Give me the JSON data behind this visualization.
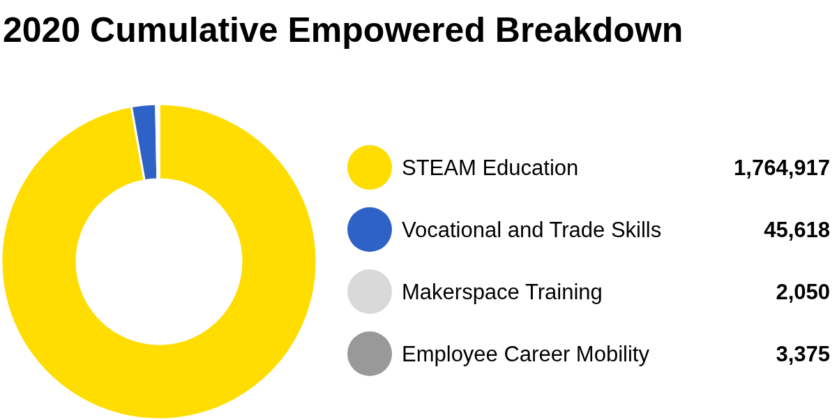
{
  "chart_data": {
    "type": "donut",
    "title": "2020 Cumulative Empowered Breakdown",
    "categories": [
      "STEAM Education",
      "Vocational and Trade Skills",
      "Makerspace Training",
      "Employee Career Mobility"
    ],
    "values": [
      1764917,
      45618,
      2050,
      3375
    ],
    "colors": [
      "#ffdd00",
      "#2e62c6",
      "#d9d9d9",
      "#999999"
    ],
    "value_labels": [
      "1,764,917",
      "45,618",
      "2,050",
      "3,375"
    ],
    "legend": "right"
  }
}
